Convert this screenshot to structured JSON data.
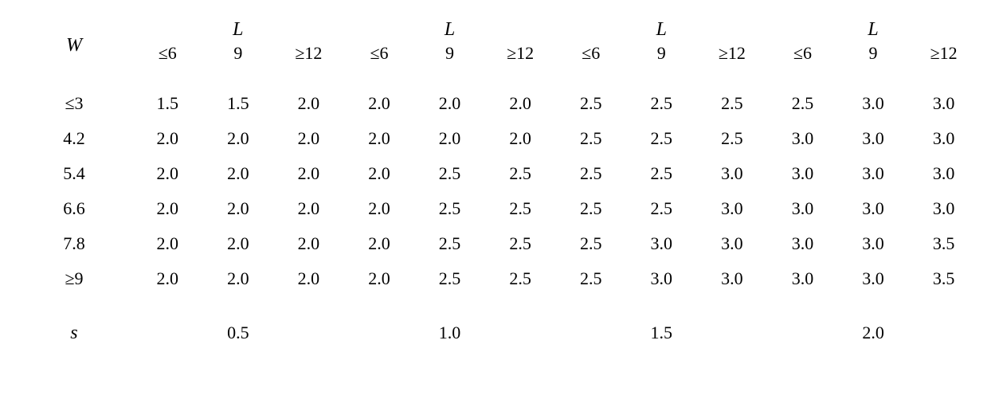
{
  "table": {
    "border_color": "#000000",
    "background_color": "#ffffff",
    "font_family": "SimSun / Times-like serif",
    "cell_fontsize": 22,
    "header_italic_fontsize": 24,
    "row_header_label": "W",
    "group_header_label": "L",
    "footer_label": "s",
    "sub_headers": [
      "≤6",
      "9",
      "≥12"
    ],
    "group_count": 4,
    "row_labels": [
      "≤3",
      "4.2",
      "5.4",
      "6.6",
      "7.8",
      "≥9"
    ],
    "groups": [
      {
        "footer": "0.5",
        "rows": [
          [
            "1.5",
            "1.5",
            "2.0"
          ],
          [
            "2.0",
            "2.0",
            "2.0"
          ],
          [
            "2.0",
            "2.0",
            "2.0"
          ],
          [
            "2.0",
            "2.0",
            "2.0"
          ],
          [
            "2.0",
            "2.0",
            "2.0"
          ],
          [
            "2.0",
            "2.0",
            "2.0"
          ]
        ]
      },
      {
        "footer": "1.0",
        "rows": [
          [
            "2.0",
            "2.0",
            "2.0"
          ],
          [
            "2.0",
            "2.0",
            "2.0"
          ],
          [
            "2.0",
            "2.5",
            "2.5"
          ],
          [
            "2.0",
            "2.5",
            "2.5"
          ],
          [
            "2.0",
            "2.5",
            "2.5"
          ],
          [
            "2.0",
            "2.5",
            "2.5"
          ]
        ]
      },
      {
        "footer": "1.5",
        "rows": [
          [
            "2.5",
            "2.5",
            "2.5"
          ],
          [
            "2.5",
            "2.5",
            "2.5"
          ],
          [
            "2.5",
            "2.5",
            "3.0"
          ],
          [
            "2.5",
            "2.5",
            "3.0"
          ],
          [
            "2.5",
            "3.0",
            "3.0"
          ],
          [
            "2.5",
            "3.0",
            "3.0"
          ]
        ]
      },
      {
        "footer": "2.0",
        "rows": [
          [
            "2.5",
            "3.0",
            "3.0"
          ],
          [
            "3.0",
            "3.0",
            "3.0"
          ],
          [
            "3.0",
            "3.0",
            "3.0"
          ],
          [
            "3.0",
            "3.0",
            "3.0"
          ],
          [
            "3.0",
            "3.0",
            "3.5"
          ],
          [
            "3.0",
            "3.0",
            "3.5"
          ]
        ]
      }
    ]
  }
}
